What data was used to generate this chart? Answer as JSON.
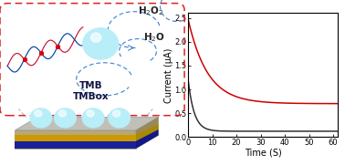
{
  "xlabel": "Time (S)",
  "ylabel": "Current (μA)",
  "xlim": [
    0,
    62
  ],
  "ylim": [
    0,
    2.6
  ],
  "xticks": [
    0,
    10,
    20,
    30,
    40,
    50,
    60
  ],
  "yticks": [
    0.0,
    0.5,
    1.0,
    1.5,
    2.0,
    2.5
  ],
  "red_curve": {
    "color": "#cc0000",
    "start": 2.48,
    "plateau": 0.7,
    "tau": 8.0
  },
  "black_curve": {
    "color": "#333333",
    "start": 1.22,
    "plateau": 0.12,
    "tau": 2.5
  },
  "bg_color": "#ffffff",
  "border_color": "#000000",
  "arrow_color": "#4488cc",
  "dna_color1": "#cc1133",
  "dna_color2": "#0044aa",
  "sphere_color": "#b8eef8",
  "chip_top_color": "#c8c8c8",
  "chip_front_color": "#b8a880",
  "chip_side_color": "#9a8860",
  "chip_gold_color": "#cc9900",
  "chip_blue_color": "#1a2299",
  "red_border_color": "#dd2222",
  "fig_width": 3.78,
  "fig_height": 1.81,
  "dpi": 100,
  "curve_linewidth": 1.1,
  "font_size_label": 7,
  "font_size_tick": 6,
  "font_size_chem": 7.5
}
